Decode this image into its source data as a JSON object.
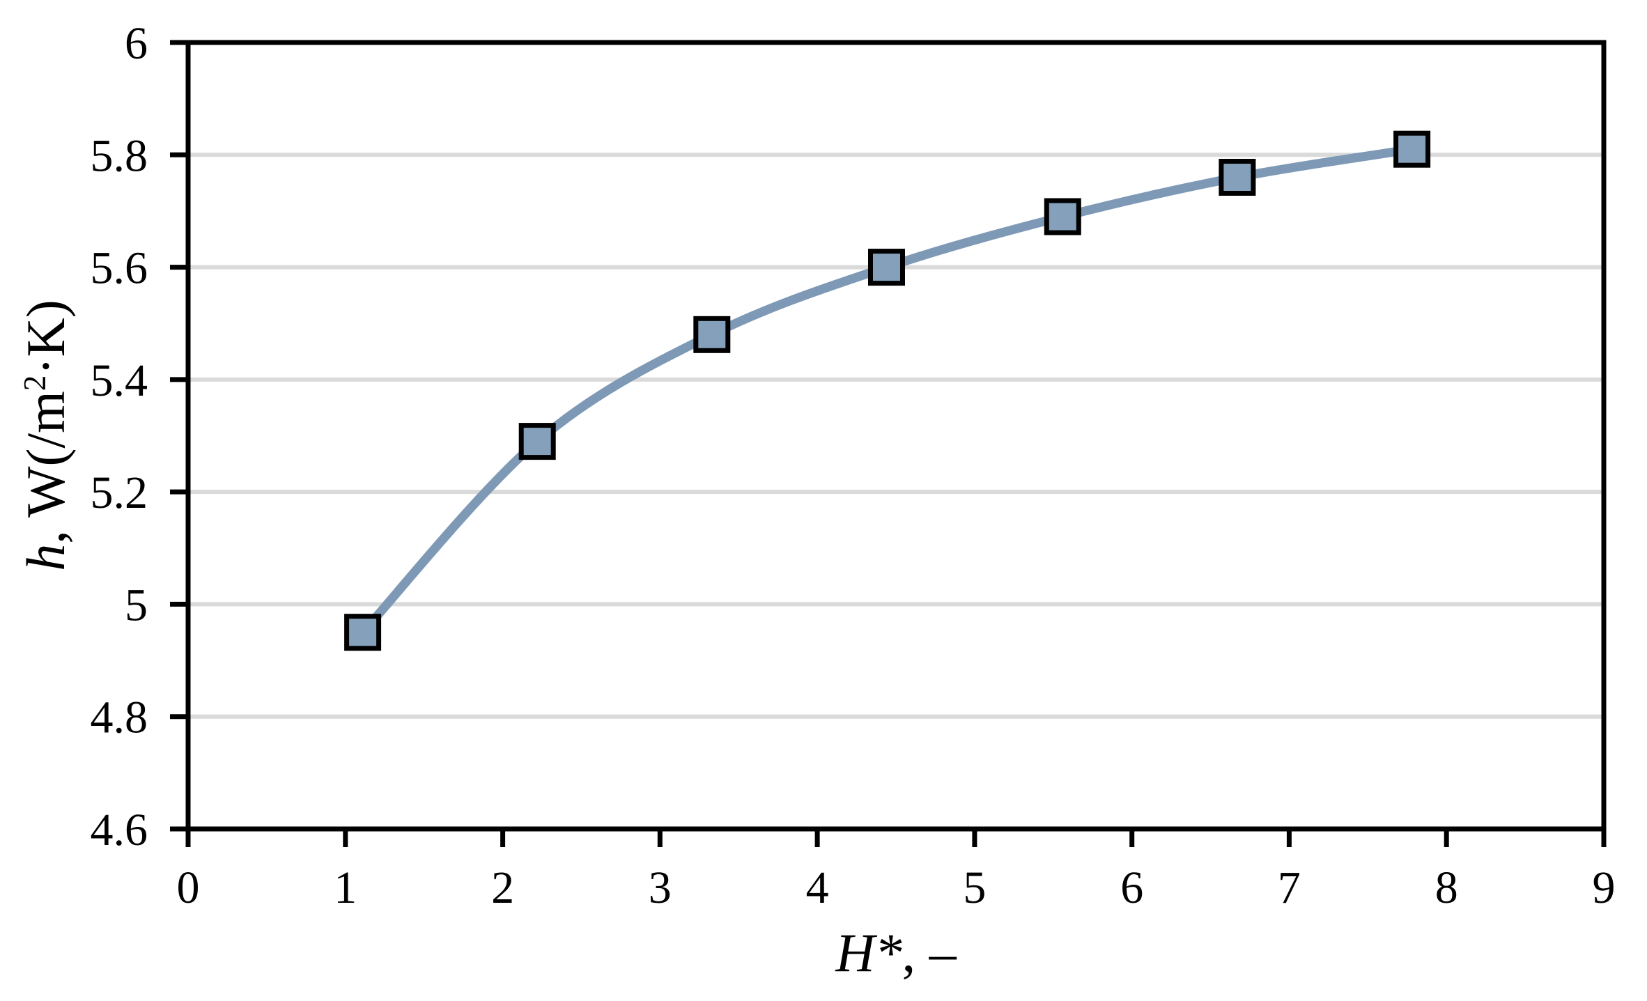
{
  "chart_data": {
    "type": "line",
    "title": "",
    "xlabel": "H*, –",
    "ylabel": "h, W(/m2·K)",
    "x": [
      1.11,
      2.22,
      3.33,
      4.44,
      5.56,
      6.67,
      7.78
    ],
    "series": [
      {
        "name": "h",
        "values": [
          4.95,
          5.29,
          5.48,
          5.6,
          5.69,
          5.76,
          5.81
        ]
      }
    ],
    "xlim": [
      0,
      9
    ],
    "ylim": [
      4.6,
      6.0
    ],
    "x_ticks": [
      0,
      1,
      2,
      3,
      4,
      5,
      6,
      7,
      8,
      9
    ],
    "x_tick_labels": [
      "0",
      "1",
      "2",
      "3",
      "4",
      "5",
      "6",
      "7",
      "8",
      "9"
    ],
    "y_ticks": [
      4.6,
      4.8,
      5.0,
      5.2,
      5.4,
      5.6,
      5.8,
      6.0
    ],
    "y_tick_labels": [
      "4.6",
      "4.8",
      "5",
      "5.2",
      "5.4",
      "5.6",
      "5.8",
      "6"
    ],
    "grid": "horizontal",
    "legend": "none",
    "marker": "square",
    "smooth": true
  },
  "axes": {
    "x_title": {
      "italic": "H*",
      "rest": ", –"
    },
    "y_title": {
      "italic": "h",
      "mid": ", W(/m",
      "sup": "2",
      "rest": "·K)"
    }
  },
  "colors": {
    "line": "#7E99B5",
    "marker_fill": "#84A0BB",
    "marker_stroke": "#000000",
    "grid": "#DADADA",
    "axis": "#000000",
    "background": "#FFFFFF"
  }
}
